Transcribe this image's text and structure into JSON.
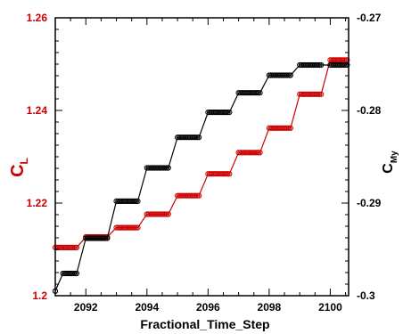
{
  "chart_data": {
    "type": "line",
    "xlabel": "Fractional_Time_Step",
    "ylabel_left": "C",
    "ylabel_left_sub": "L",
    "ylabel_right": "C",
    "ylabel_right_sub": "My",
    "xlim": [
      2091,
      2100.6
    ],
    "ylim_left": [
      1.2,
      1.26
    ],
    "ylim_right": [
      -0.3,
      -0.27
    ],
    "x_ticks": [
      2092,
      2094,
      2096,
      2098,
      2100
    ],
    "x_tick_labels": [
      "2092",
      "2094",
      "2096",
      "2098",
      "2100"
    ],
    "y_left_ticks": [
      1.2,
      1.22,
      1.24,
      1.26
    ],
    "y_left_tick_labels": [
      "1.2",
      "1.22",
      "1.24",
      "1.26"
    ],
    "y_right_ticks": [
      -0.3,
      -0.29,
      -0.28,
      -0.27
    ],
    "y_right_tick_labels": [
      "-0.3",
      "-0.29",
      "-0.28",
      "-0.27"
    ],
    "grid": false,
    "legend": "none",
    "colors": {
      "CL": "#cc0000",
      "CMy": "#000000",
      "left_axis_text": "#cc0000"
    },
    "series": [
      {
        "axis": "left",
        "color": "#cc0000",
        "steps": [
          {
            "x0": 2091.0,
            "x1": 2091.7,
            "y": 1.2104
          },
          {
            "x0": 2092.0,
            "x1": 2092.7,
            "y": 1.2127
          },
          {
            "x0": 2093.0,
            "x1": 2093.7,
            "y": 1.2147
          },
          {
            "x0": 2094.0,
            "x1": 2094.7,
            "y": 1.2176
          },
          {
            "x0": 2095.0,
            "x1": 2095.7,
            "y": 1.2216
          },
          {
            "x0": 2096.0,
            "x1": 2096.7,
            "y": 1.2263
          },
          {
            "x0": 2097.0,
            "x1": 2097.7,
            "y": 1.2309
          },
          {
            "x0": 2098.0,
            "x1": 2098.7,
            "y": 1.2362
          },
          {
            "x0": 2099.0,
            "x1": 2099.7,
            "y": 1.2435
          },
          {
            "x0": 2100.0,
            "x1": 2100.55,
            "y": 1.2509
          }
        ]
      },
      {
        "axis": "right",
        "color": "#000000",
        "steps": [
          {
            "x0": 2091.0,
            "x1": 2091.0,
            "y": -0.2995
          },
          {
            "x0": 2091.25,
            "x1": 2091.7,
            "y": -0.2976
          },
          {
            "x0": 2092.0,
            "x1": 2092.7,
            "y": -0.2938
          },
          {
            "x0": 2093.0,
            "x1": 2093.7,
            "y": -0.2898
          },
          {
            "x0": 2094.0,
            "x1": 2094.7,
            "y": -0.2862
          },
          {
            "x0": 2095.0,
            "x1": 2095.7,
            "y": -0.2829
          },
          {
            "x0": 2096.0,
            "x1": 2096.7,
            "y": -0.2802
          },
          {
            "x0": 2097.0,
            "x1": 2097.7,
            "y": -0.2781
          },
          {
            "x0": 2098.0,
            "x1": 2098.7,
            "y": -0.2762
          },
          {
            "x0": 2099.0,
            "x1": 2099.7,
            "y": -0.2751
          },
          {
            "x0": 2100.0,
            "x1": 2100.55,
            "y": -0.2751
          }
        ]
      }
    ]
  }
}
